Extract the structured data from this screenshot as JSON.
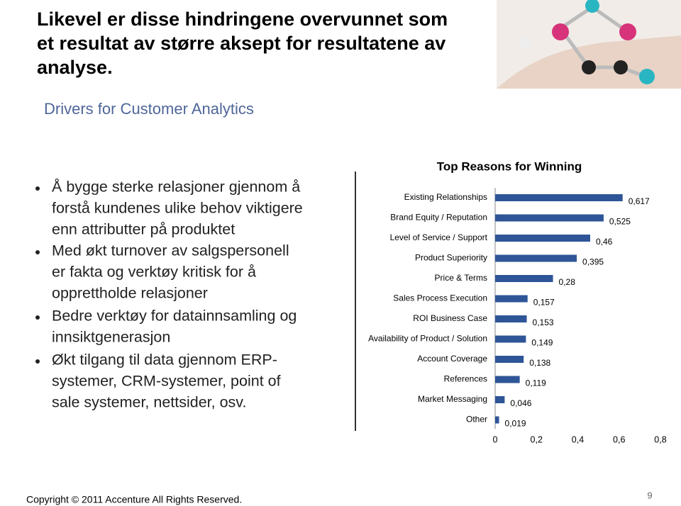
{
  "title": [
    "Likevel er disse hindringene overvunnet som",
    "et resultat av større aksept for resultatene av",
    "analyse."
  ],
  "subtitle": "Drivers for Customer Analytics",
  "bullets": [
    [
      "Å bygge sterke relasjoner gjennom å",
      "forstå kundenes ulike behov viktigere",
      "enn attributter på produktet"
    ],
    [
      "Med økt turnover av salgspersonell",
      "er fakta og verktøy kritisk for å",
      "opprettholde relasjoner"
    ],
    [
      "Bedre verktøy for datainnsamling og",
      "innsiktgenerasjon"
    ],
    [
      "Økt tilgang til data gjennom ERP-",
      "systemer, CRM-systemer, point of",
      "sale systemer, nettsider, osv."
    ]
  ],
  "chart_data": {
    "type": "bar",
    "orientation": "horizontal",
    "title": "Top Reasons for Winning",
    "categories": [
      "Existing Relationships",
      "Brand Equity / Reputation",
      "Level of Service / Support",
      "Product Superiority",
      "Price & Terms",
      "Sales Process Execution",
      "ROI Business Case",
      "Availability of Product / Solution",
      "Account Coverage",
      "References",
      "Market Messaging",
      "Other"
    ],
    "values": [
      0.617,
      0.525,
      0.46,
      0.395,
      0.28,
      0.157,
      0.153,
      0.149,
      0.138,
      0.119,
      0.046,
      0.019
    ],
    "value_labels": [
      "0,617",
      "0,525",
      "0,46",
      "0,395",
      "0,28",
      "0,157",
      "0,153",
      "0,149",
      "0,138",
      "0,119",
      "0,046",
      "0,019"
    ],
    "color": "#2e5597",
    "xlim": [
      0,
      0.8
    ],
    "xticks": [
      0,
      {
        "value": 0.2,
        "label": "0,2"
      },
      {
        "value": 0.4,
        "label": "0,4"
      },
      {
        "value": 0.6,
        "label": "0,6"
      },
      {
        "value": 0.8,
        "label": "0,8"
      }
    ]
  },
  "footer": {
    "copyright": "Copyright © 2011 Accenture All Rights Reserved.",
    "page": "9"
  }
}
